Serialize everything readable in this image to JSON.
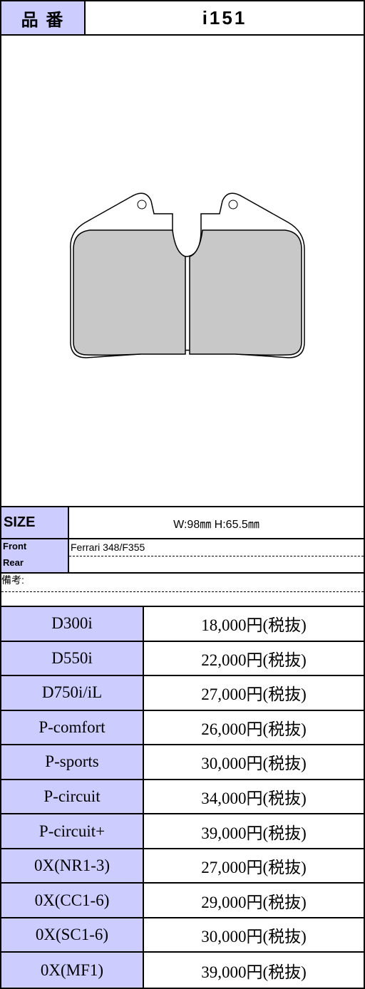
{
  "header": {
    "label": "品 番",
    "code": "i151"
  },
  "size": {
    "label": "SIZE",
    "value": "W:98㎜ H:65.5㎜"
  },
  "fitment": {
    "front_label": "Front",
    "front": "Ferrari 348/F355",
    "rear_label": "Rear"
  },
  "remarks_label": "備考:",
  "prices": [
    [
      "D300i",
      "18,000円(税抜)"
    ],
    [
      "D550i",
      "22,000円(税抜)"
    ],
    [
      "D750i/iL",
      "27,000円(税抜)"
    ],
    [
      "P-comfort",
      "26,000円(税抜)"
    ],
    [
      "P-sports",
      "30,000円(税抜)"
    ],
    [
      "P-circuit",
      "34,000円(税抜)"
    ],
    [
      "P-circuit+",
      "39,000円(税抜)"
    ],
    [
      "0X(NR1-3)",
      "27,000円(税抜)"
    ],
    [
      "0X(CC1-6)",
      "29,000円(税抜)"
    ],
    [
      "0X(SC1-6)",
      "30,000円(税抜)"
    ],
    [
      "0X(MF1)",
      "39,000円(税抜)"
    ]
  ]
}
